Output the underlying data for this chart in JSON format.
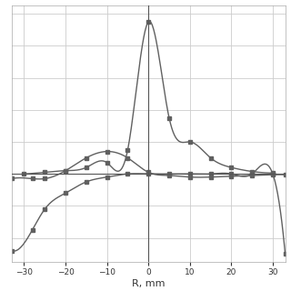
{
  "xlabel": "R, mm",
  "xlim": [
    -33,
    33
  ],
  "ylim": [
    -0.55,
    1.05
  ],
  "background_color": "#ffffff",
  "plot_bg_color": "#ffffff",
  "curve_color": "#606060",
  "marker": "s",
  "marker_size": 3.5,
  "line_width": 1.0,
  "vx_x": [
    -30,
    -25,
    -20,
    -15,
    -10,
    -5,
    0,
    5,
    10,
    15,
    20,
    25,
    30
  ],
  "vx_y": [
    0.0,
    0.01,
    0.02,
    0.04,
    0.07,
    0.15,
    0.95,
    0.35,
    0.2,
    0.1,
    0.04,
    0.015,
    0.005
  ],
  "vy_x": [
    -33,
    -28,
    -25,
    -20,
    -15,
    -10,
    -5,
    0,
    5,
    10,
    15,
    20,
    25,
    30,
    33
  ],
  "vy_y": [
    -0.03,
    -0.03,
    -0.03,
    0.02,
    0.1,
    0.14,
    0.1,
    0.01,
    -0.01,
    -0.02,
    -0.02,
    -0.015,
    -0.01,
    -0.005,
    -0.005
  ],
  "vz_x": [
    -33,
    -28,
    -25,
    -20,
    -15,
    -10,
    -5,
    0,
    5,
    10,
    15,
    20,
    25,
    30,
    33
  ],
  "vz_y": [
    -0.48,
    -0.35,
    -0.22,
    -0.12,
    -0.05,
    -0.02,
    0.0,
    0.0,
    0.0,
    0.0,
    0.0,
    0.0,
    0.0,
    0.0,
    -0.5
  ],
  "xticks": [
    -30,
    -20,
    -10,
    0,
    10,
    20,
    30
  ],
  "tick_fontsize": 6.5,
  "xlabel_fontsize": 8
}
